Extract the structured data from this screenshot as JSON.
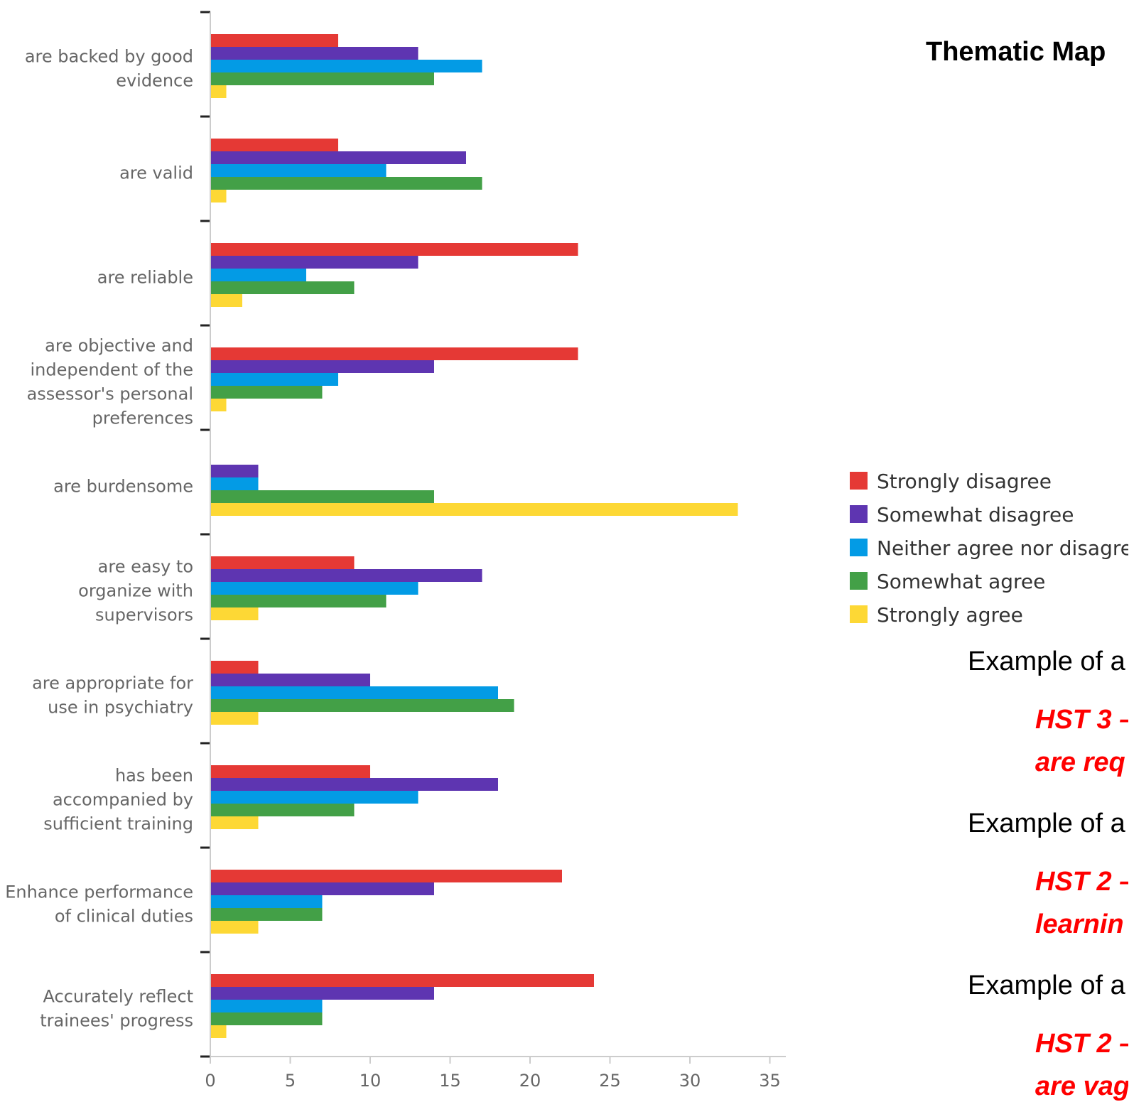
{
  "side": {
    "title": "Thematic Map",
    "lines": [
      {
        "text": "Example of a",
        "style": "plain"
      },
      {
        "text": "HST 3 –",
        "style": "red"
      },
      {
        "text": "are req",
        "style": "red"
      },
      {
        "text": "Example of a",
        "style": "plain"
      },
      {
        "text": "HST 2 –",
        "style": "red"
      },
      {
        "text": "learnin",
        "style": "red"
      },
      {
        "text": "Example of a",
        "style": "plain"
      },
      {
        "text": "HST 2 –",
        "style": "red"
      },
      {
        "text": "are vag",
        "style": "red"
      }
    ]
  },
  "colors": {
    "Strongly disagree": "#e53935",
    "Somewhat disagree": "#5e35b1",
    "Neither agree nor disagree": "#039be5",
    "Somewhat agree": "#43a047",
    "Strongly agree": "#fdd835"
  },
  "chart_data": {
    "type": "bar",
    "orientation": "horizontal",
    "title": "",
    "xlabel": "",
    "ylabel": "",
    "xlim": [
      0,
      36
    ],
    "xticks": [
      0,
      5,
      10,
      15,
      20,
      25,
      30,
      35
    ],
    "grid": false,
    "legend_position": "right",
    "categories": [
      [
        "are backed by good",
        "evidence"
      ],
      [
        "are valid"
      ],
      [
        "are reliable"
      ],
      [
        "are objective and",
        "independent of the",
        "assessor's personal",
        "preferences"
      ],
      [
        "are burdensome"
      ],
      [
        "are easy to",
        "organize with",
        "supervisors"
      ],
      [
        "are appropriate for",
        "use in psychiatry"
      ],
      [
        "has been",
        "accompanied by",
        "sufficient training"
      ],
      [
        "Enhance performance",
        "of clinical duties"
      ],
      [
        "Accurately reflect",
        "trainees' progress"
      ]
    ],
    "series": [
      {
        "name": "Strongly disagree",
        "values": [
          8,
          8,
          23,
          23,
          0,
          9,
          3,
          10,
          22,
          24
        ]
      },
      {
        "name": "Somewhat disagree",
        "values": [
          13,
          16,
          13,
          14,
          3,
          17,
          10,
          18,
          14,
          14
        ]
      },
      {
        "name": "Neither agree nor disagree",
        "values": [
          17,
          11,
          6,
          8,
          3,
          13,
          18,
          13,
          7,
          7
        ]
      },
      {
        "name": "Somewhat agree",
        "values": [
          14,
          17,
          9,
          7,
          14,
          11,
          19,
          9,
          7,
          7
        ]
      },
      {
        "name": "Strongly agree",
        "values": [
          1,
          1,
          2,
          1,
          33,
          3,
          3,
          3,
          3,
          1
        ]
      }
    ]
  }
}
